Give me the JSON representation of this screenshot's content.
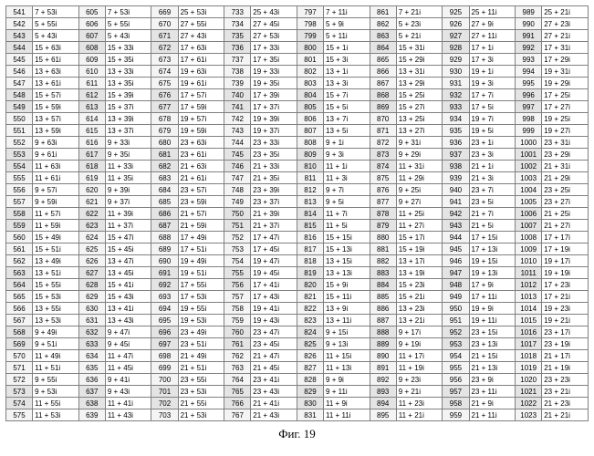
{
  "caption": "Фиг. 19",
  "columns_per_group": 2,
  "groups": 8,
  "start_index": 541,
  "row_count": 35,
  "shaded_rows": [
    2,
    3,
    7,
    8,
    12,
    13,
    17,
    18,
    22,
    23,
    27,
    28,
    32,
    33
  ],
  "cells": [
    [
      "7 + 53i",
      "25 + 53i",
      "25 + 43i",
      "7 + 11i",
      "7 + 21i",
      "25 + 11i",
      "25 + 21i"
    ],
    [
      "5 + 55i",
      "27 + 55i",
      "27 + 45i",
      "5 + 9i",
      "5 + 23i",
      "27 + 9i",
      "27 + 23i"
    ],
    [
      "5 + 43i",
      "27 + 43i",
      "27 + 53i",
      "5 + 11i",
      "5 + 21i",
      "27 + 11i",
      "27 + 21i"
    ],
    [
      "15 + 33i",
      "17 + 63i",
      "17 + 33i",
      "15 + 1i",
      "15 + 31i",
      "17 + 1i",
      "17 + 31i"
    ],
    [
      "15 + 35i",
      "17 + 61i",
      "17 + 35i",
      "15 + 3i",
      "15 + 29i",
      "17 + 3i",
      "17 + 29i"
    ],
    [
      "13 + 33i",
      "19 + 63i",
      "19 + 33i",
      "13 + 1i",
      "13 + 31i",
      "19 + 1i",
      "19 + 31i"
    ],
    [
      "13 + 35i",
      "19 + 61i",
      "19 + 35i",
      "13 + 3i",
      "13 + 29i",
      "19 + 3i",
      "19 + 29i"
    ],
    [
      "15 + 39i",
      "17 + 57i",
      "17 + 39i",
      "15 + 7i",
      "15 + 25i",
      "17 + 7i",
      "17 + 25i"
    ],
    [
      "15 + 37i",
      "17 + 59i",
      "17 + 37i",
      "15 + 5i",
      "15 + 27i",
      "17 + 5i",
      "17 + 27i"
    ],
    [
      "13 + 39i",
      "19 + 57i",
      "19 + 39i",
      "13 + 7i",
      "13 + 25i",
      "19 + 7i",
      "19 + 25i"
    ],
    [
      "13 + 37i",
      "19 + 59i",
      "19 + 37i",
      "13 + 5i",
      "13 + 27i",
      "19 + 5i",
      "19 + 27i"
    ],
    [
      "9 + 33i",
      "23 + 63i",
      "23 + 33i",
      "9 + 1i",
      "9 + 31i",
      "23 + 1i",
      "23 + 31i"
    ],
    [
      "9 + 35i",
      "23 + 61i",
      "23 + 35i",
      "9 + 3i",
      "9 + 29i",
      "23 + 3i",
      "23 + 29i"
    ],
    [
      "11 + 33i",
      "21 + 63i",
      "21 + 33i",
      "11 + 1i",
      "11 + 31i",
      "21 + 1i",
      "21 + 31i"
    ],
    [
      "11 + 35i",
      "21 + 61i",
      "21 + 35i",
      "11 + 3i",
      "11 + 29i",
      "21 + 3i",
      "21 + 29i"
    ],
    [
      "9 + 39i",
      "23 + 57i",
      "23 + 39i",
      "9 + 7i",
      "9 + 25i",
      "23 + 7i",
      "23 + 25i"
    ],
    [
      "9 + 37i",
      "23 + 59i",
      "23 + 37i",
      "9 + 5i",
      "9 + 27i",
      "23 + 5i",
      "23 + 27i"
    ],
    [
      "11 + 39i",
      "21 + 57i",
      "21 + 39i",
      "11 + 7i",
      "11 + 25i",
      "21 + 7i",
      "21 + 25i"
    ],
    [
      "11 + 37i",
      "21 + 59i",
      "21 + 37i",
      "11 + 5i",
      "11 + 27i",
      "21 + 5i",
      "21 + 27i"
    ],
    [
      "15 + 47i",
      "17 + 49i",
      "17 + 47i",
      "15 + 15i",
      "15 + 17i",
      "17 + 15i",
      "17 + 17i"
    ],
    [
      "15 + 45i",
      "17 + 51i",
      "17 + 45i",
      "15 + 13i",
      "15 + 19i",
      "17 + 13i",
      "17 + 19i"
    ],
    [
      "13 + 47i",
      "19 + 49i",
      "19 + 47i",
      "13 + 15i",
      "13 + 17i",
      "19 + 15i",
      "19 + 17i"
    ],
    [
      "13 + 45i",
      "19 + 51i",
      "19 + 45i",
      "13 + 13i",
      "13 + 19i",
      "19 + 13i",
      "19 + 19i"
    ],
    [
      "15 + 41i",
      "17 + 55i",
      "17 + 41i",
      "15 + 9i",
      "15 + 23i",
      "17 + 9i",
      "17 + 23i"
    ],
    [
      "15 + 43i",
      "17 + 53i",
      "17 + 43i",
      "15 + 11i",
      "15 + 21i",
      "17 + 11i",
      "17 + 21i"
    ],
    [
      "13 + 41i",
      "19 + 55i",
      "19 + 41i",
      "13 + 9i",
      "13 + 23i",
      "19 + 9i",
      "19 + 23i"
    ],
    [
      "13 + 43i",
      "19 + 53i",
      "19 + 43i",
      "13 + 11i",
      "13 + 21i",
      "19 + 11i",
      "19 + 21i"
    ],
    [
      "9 + 47i",
      "23 + 49i",
      "23 + 47i",
      "9 + 15i",
      "9 + 17i",
      "23 + 15i",
      "23 + 17i"
    ],
    [
      "9 + 45i",
      "23 + 51i",
      "23 + 45i",
      "9 + 13i",
      "9 + 19i",
      "23 + 13i",
      "23 + 19i"
    ],
    [
      "11 + 47i",
      "21 + 49i",
      "21 + 47i",
      "11 + 15i",
      "11 + 17i",
      "21 + 15i",
      "21 + 17i"
    ],
    [
      "11 + 45i",
      "21 + 51i",
      "21 + 45i",
      "11 + 13i",
      "11 + 19i",
      "21 + 13i",
      "21 + 19i"
    ],
    [
      "9 + 41i",
      "23 + 55i",
      "23 + 41i",
      "9 + 9i",
      "9 + 23i",
      "23 + 9i",
      "23 + 23i"
    ],
    [
      "9 + 43i",
      "23 + 53i",
      "23 + 43i",
      "9 + 11i",
      "9 + 21i",
      "23 + 11i",
      "23 + 21i"
    ],
    [
      "11 + 41i",
      "21 + 55i",
      "21 + 41i",
      "11 + 9i",
      "11 + 23i",
      "21 + 9i",
      "21 + 23i"
    ],
    [
      "11 + 43i",
      "21 + 53i",
      "21 + 43i",
      "11 + 11i",
      "11 + 21i",
      "21 + 11i",
      "21 + 21i"
    ]
  ],
  "first_col_values": [
    "7 + 53i",
    "5 + 55i",
    "5 + 43i",
    "15 + 63i",
    "15 + 61i",
    "13 + 63i",
    "13 + 61i",
    "15 + 57i",
    "15 + 59i",
    "13 + 57i",
    "13 + 59i",
    "9 + 63i",
    "9 + 61i",
    "11 + 63i",
    "11 + 61i",
    "9 + 57i",
    "9 + 59i",
    "11 + 57i",
    "11 + 59i",
    "15 + 49i",
    "15 + 51i",
    "13 + 49i",
    "13 + 51i",
    "15 + 55i",
    "15 + 53i",
    "13 + 55i",
    "13 + 53i",
    "9 + 49i",
    "9 + 51i",
    "11 + 49i",
    "11 + 51i",
    "9 + 55i",
    "9 + 53i",
    "11 + 55i",
    "11 + 53i"
  ]
}
